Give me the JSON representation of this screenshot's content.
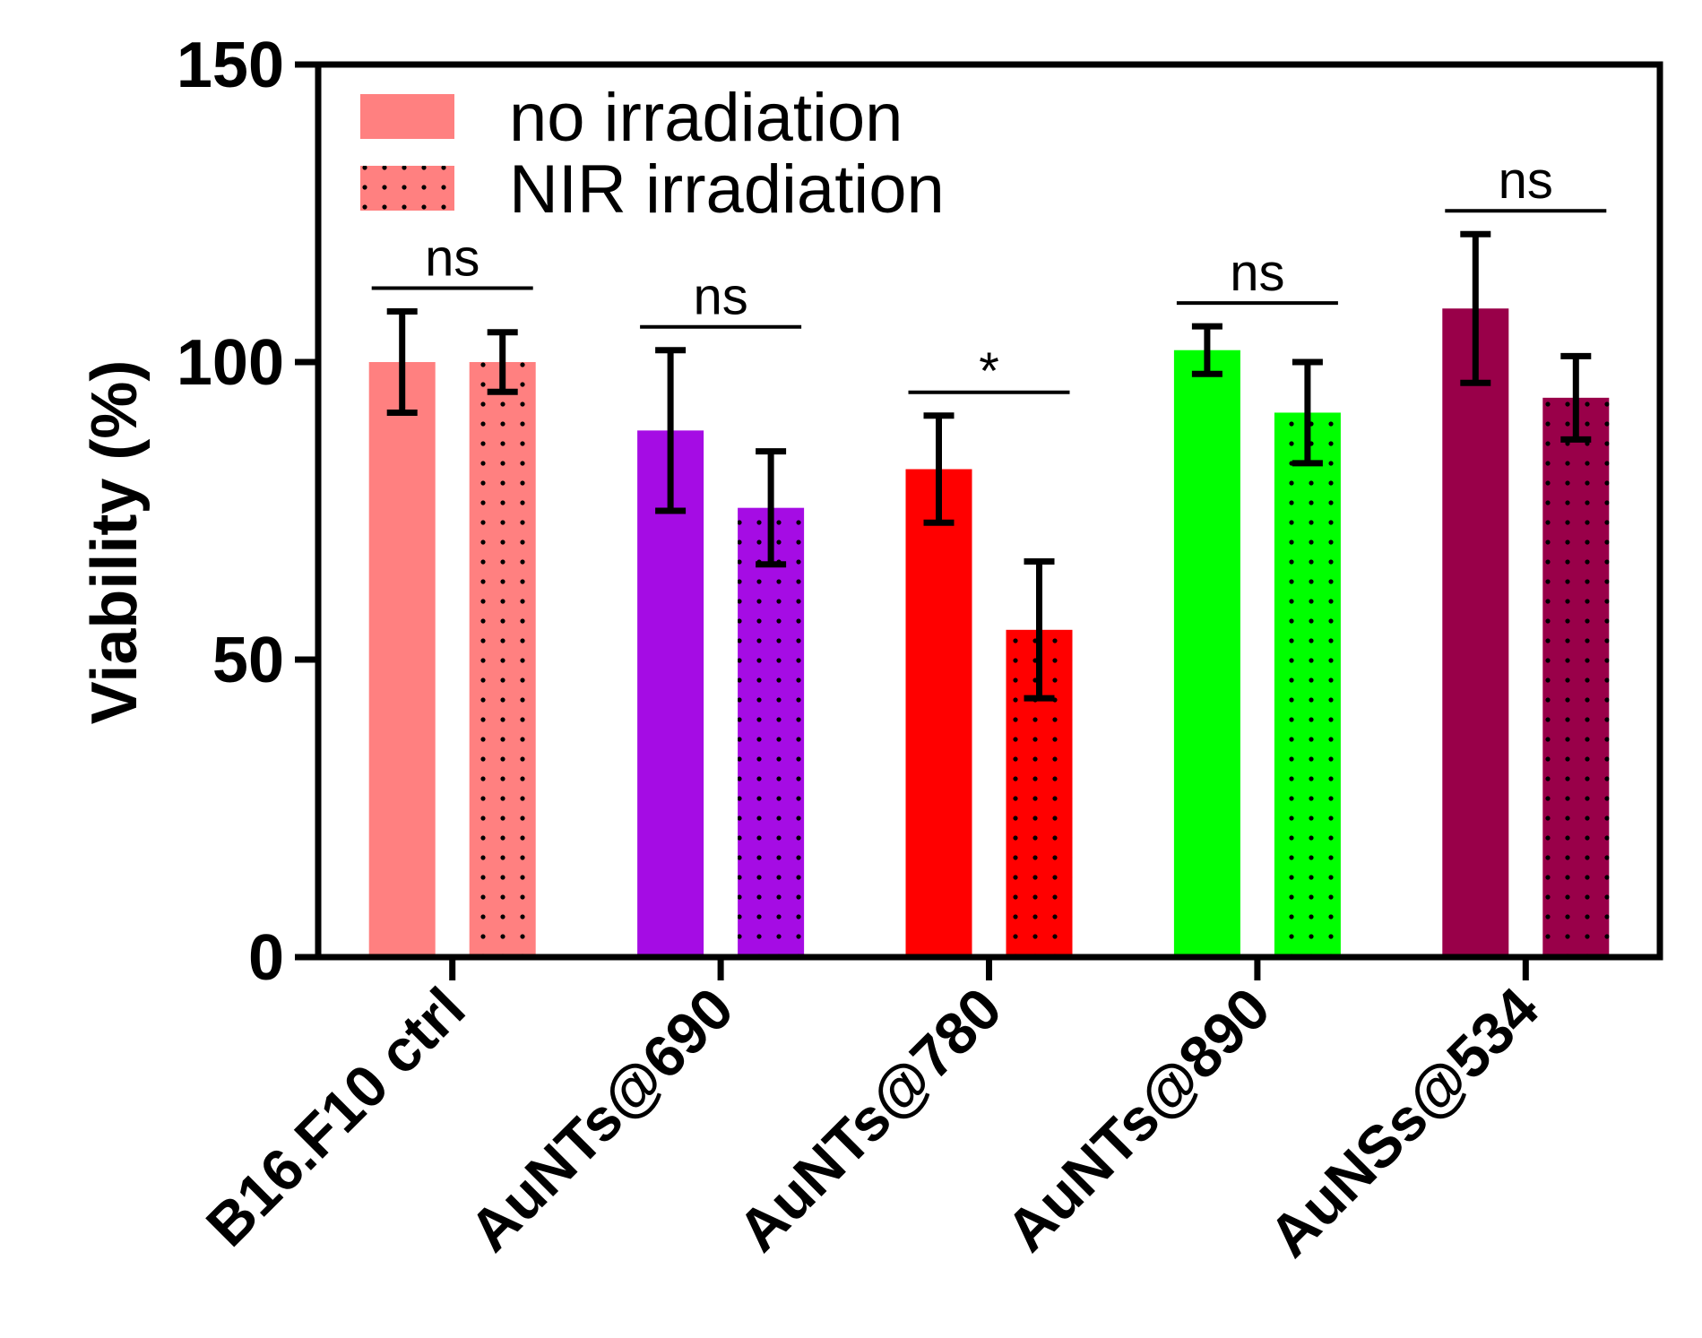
{
  "chart_data": {
    "type": "bar",
    "ylabel": "Viability (%)",
    "xlabel": "",
    "ylim": [
      0,
      150
    ],
    "yticks": [
      0,
      50,
      100,
      150
    ],
    "grid": false,
    "legend_position": "top-left",
    "categories": [
      "B16.F10 ctrl",
      "AuNTs@690",
      "AuNTs@780",
      "AuNTs@890",
      "AuNSs@534"
    ],
    "category_colors": [
      "#ff8080",
      "#a50ce4",
      "#ff0000",
      "#00ff00",
      "#990049"
    ],
    "series": [
      {
        "name": "no irradiation",
        "pattern": "solid",
        "values": [
          100,
          88.5,
          82,
          102,
          109
        ],
        "errors": [
          8.5,
          13.5,
          9,
          4,
          12.5
        ]
      },
      {
        "name": "NIR irradiation",
        "pattern": "dotted",
        "values": [
          100,
          75.5,
          55,
          91.5,
          94
        ],
        "errors": [
          5,
          9.5,
          11.5,
          8.5,
          7
        ]
      }
    ],
    "significance": [
      {
        "category": "B16.F10 ctrl",
        "label": "ns"
      },
      {
        "category": "AuNTs@690",
        "label": "ns"
      },
      {
        "category": "AuNTs@780",
        "label": "*"
      },
      {
        "category": "AuNTs@890",
        "label": "ns"
      },
      {
        "category": "AuNSs@534",
        "label": "ns"
      }
    ]
  }
}
